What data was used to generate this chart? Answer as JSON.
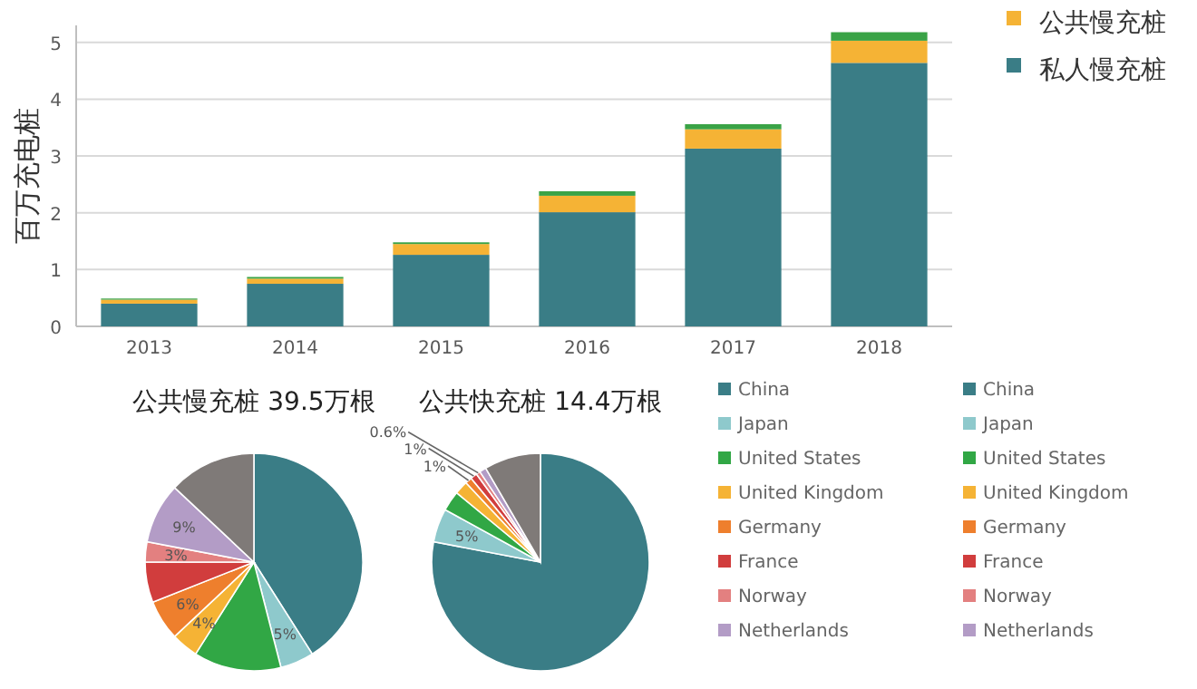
{
  "chart_data": [
    {
      "type": "bar",
      "stacked": true,
      "ylabel": "百万充电桩",
      "categories": [
        "2013",
        "2014",
        "2015",
        "2016",
        "2017",
        "2018"
      ],
      "ylim": [
        0,
        5.3
      ],
      "yticks": [
        0,
        1,
        2,
        3,
        4,
        5
      ],
      "grid": "y",
      "legend": "top right",
      "series": [
        {
          "name": "私人慢充桩",
          "color": "#3a7d86",
          "values": [
            0.4,
            0.75,
            1.26,
            2.01,
            3.13,
            4.64
          ]
        },
        {
          "name": "公共慢充桩",
          "color": "#f5b335",
          "values": [
            0.07,
            0.09,
            0.19,
            0.29,
            0.34,
            0.39
          ]
        },
        {
          "color": "#3aa346",
          "values": [
            0.02,
            0.03,
            0.03,
            0.08,
            0.09,
            0.15
          ]
        }
      ]
    },
    {
      "type": "pie",
      "title": "公共慢充桩 39.5万根",
      "categories": [
        "China",
        "Japan",
        "United States",
        "United Kingdom",
        "Germany",
        "France",
        "Norway",
        "Netherlands",
        null
      ],
      "values": [
        41,
        5,
        13,
        4,
        6,
        6,
        3,
        9,
        13
      ],
      "value_labels": [
        null,
        "5%",
        null,
        "4%",
        "6%",
        null,
        "3%",
        "9%",
        null
      ],
      "colors": [
        "#3a7d86",
        "#8ec9cc",
        "#31a745",
        "#f5b335",
        "#ee7f2d",
        "#d13d3d",
        "#e38080",
        "#b39cc6",
        "#7f7a78"
      ],
      "legend": "right"
    },
    {
      "type": "pie",
      "title": "公共快充桩 14.4万根",
      "categories": [
        "China",
        "Japan",
        "United States",
        "United Kingdom",
        "Germany",
        "France",
        "Norway",
        "Netherlands",
        null
      ],
      "values": [
        78,
        5,
        3,
        2,
        1,
        1,
        0.6,
        1,
        8.4
      ],
      "value_labels": [
        null,
        "5%",
        null,
        null,
        "1%",
        "1%",
        "0.6%",
        null,
        null
      ],
      "colors": [
        "#3a7d86",
        "#8ec9cc",
        "#31a745",
        "#f5b335",
        "#ee7f2d",
        "#d13d3d",
        "#e38080",
        "#b39cc6",
        "#7f7a78"
      ],
      "legend": "right"
    }
  ]
}
